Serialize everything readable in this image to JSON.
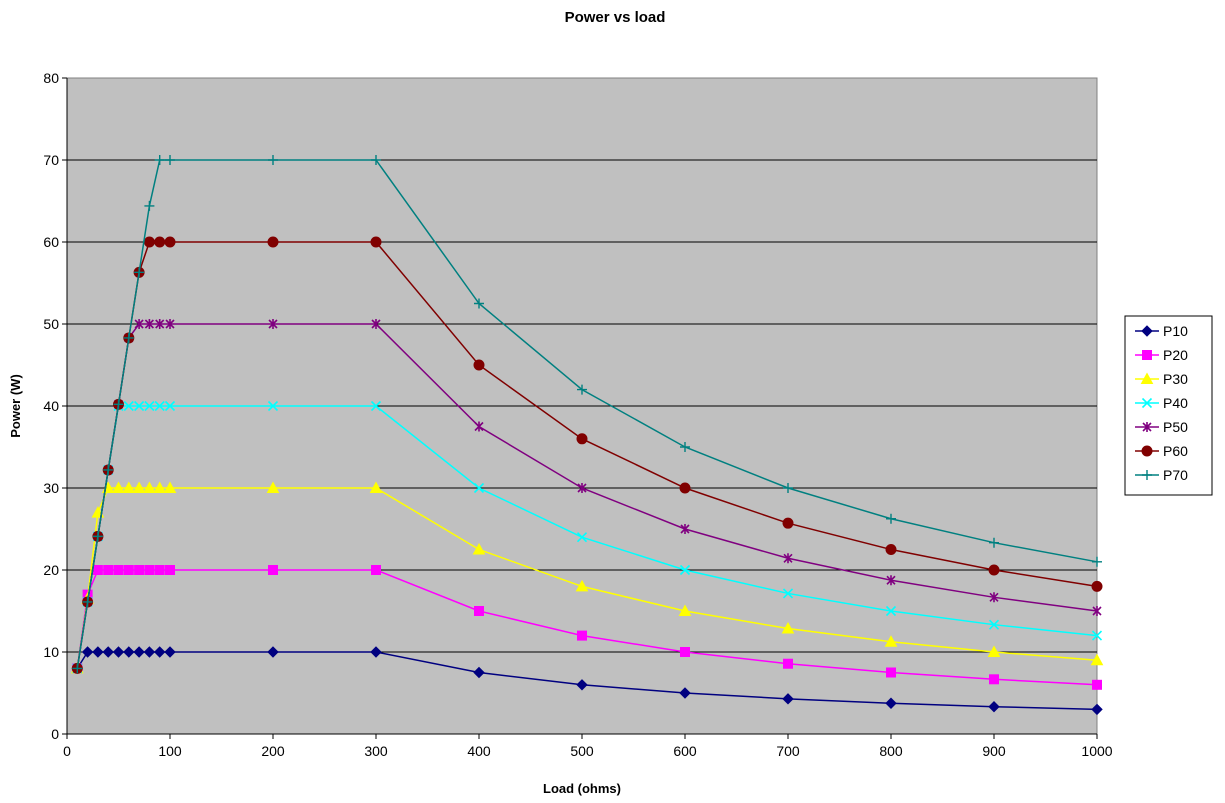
{
  "chart_data": {
    "type": "line",
    "title": "Power vs load",
    "xlabel": "Load (ohms)",
    "ylabel": "Power (W)",
    "xlim": [
      0,
      1000
    ],
    "ylim": [
      0,
      80
    ],
    "xticks": [
      0,
      100,
      200,
      300,
      400,
      500,
      600,
      700,
      800,
      900,
      1000
    ],
    "yticks": [
      0,
      10,
      20,
      30,
      40,
      50,
      60,
      70,
      80
    ],
    "grid": "horizontal",
    "plot_background": "#c0c0c0",
    "legend_position": "right",
    "x": [
      10,
      20,
      30,
      40,
      50,
      60,
      70,
      80,
      90,
      100,
      200,
      300,
      400,
      500,
      600,
      700,
      800,
      900,
      1000
    ],
    "series": [
      {
        "name": "P10",
        "color": "#000080",
        "marker": "diamond",
        "values": [
          8,
          10,
          10,
          10,
          10,
          10,
          10,
          10,
          10,
          10,
          10,
          10,
          7.5,
          6,
          5,
          4.29,
          3.75,
          3.33,
          3
        ]
      },
      {
        "name": "P20",
        "color": "#ff00ff",
        "marker": "square",
        "values": [
          8,
          17,
          20,
          20,
          20,
          20,
          20,
          20,
          20,
          20,
          20,
          20,
          15,
          12,
          10,
          8.57,
          7.5,
          6.67,
          6
        ]
      },
      {
        "name": "P30",
        "color": "#ffff00",
        "marker": "triangle",
        "values": [
          8,
          16.5,
          27,
          30,
          30,
          30,
          30,
          30,
          30,
          30,
          30,
          30,
          22.5,
          18,
          15,
          12.86,
          11.25,
          10,
          9
        ]
      },
      {
        "name": "P40",
        "color": "#00ffff",
        "marker": "x",
        "values": [
          8,
          16.1,
          24.1,
          32.2,
          40,
          40,
          40,
          40,
          40,
          40,
          40,
          40,
          30,
          24,
          20,
          17.14,
          15,
          13.33,
          12
        ]
      },
      {
        "name": "P50",
        "color": "#800080",
        "marker": "star",
        "values": [
          8,
          16.1,
          24.1,
          32.2,
          40.2,
          48.3,
          50,
          50,
          50,
          50,
          50,
          50,
          37.5,
          30,
          25,
          21.43,
          18.75,
          16.67,
          15
        ]
      },
      {
        "name": "P60",
        "color": "#800000",
        "marker": "circle",
        "values": [
          8,
          16.1,
          24.1,
          32.2,
          40.2,
          48.3,
          56.3,
          60,
          60,
          60,
          60,
          60,
          45,
          36,
          30,
          25.71,
          22.5,
          20,
          18
        ]
      },
      {
        "name": "P70",
        "color": "#008080",
        "marker": "plus",
        "values": [
          8,
          16.1,
          24.1,
          32.2,
          40.2,
          48.3,
          56.3,
          64.4,
          70,
          70,
          70,
          70,
          52.5,
          42,
          35,
          30,
          26.25,
          23.33,
          21
        ]
      }
    ]
  }
}
